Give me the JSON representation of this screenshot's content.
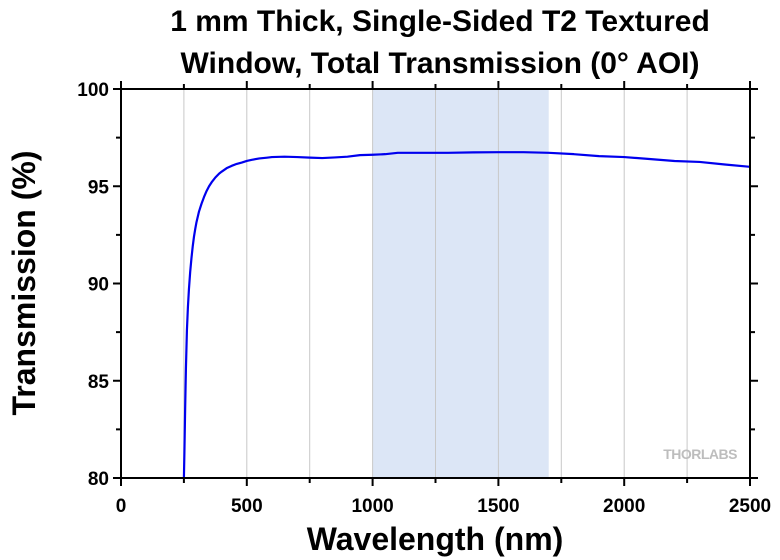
{
  "chart_data": {
    "type": "line",
    "title": [
      "1 mm Thick, Single-Sided T2 Textured",
      "Window, Total Transmission (0° AOI)"
    ],
    "xlabel": "Wavelength (nm)",
    "ylabel": "Transmission (%)",
    "xlim": [
      0,
      2500
    ],
    "ylim": [
      80,
      100
    ],
    "x_ticks": [
      0,
      500,
      1000,
      1500,
      2000,
      2500
    ],
    "y_ticks": [
      80,
      85,
      90,
      95,
      100
    ],
    "x_minor_step": 250,
    "y_minor_step": 2.5,
    "grid": "vertical",
    "shaded_region": {
      "x": [
        1000,
        1700
      ],
      "color": "#dce6f6"
    },
    "series": [
      {
        "color": "#0000ee",
        "x": [
          250,
          252,
          255,
          258,
          262,
          266,
          270,
          275,
          280,
          285,
          290,
          295,
          300,
          310,
          320,
          330,
          340,
          350,
          360,
          375,
          390,
          400,
          420,
          440,
          460,
          480,
          500,
          520,
          550,
          580,
          600,
          650,
          700,
          750,
          800,
          850,
          900,
          950,
          1000,
          1050,
          1100,
          1200,
          1300,
          1400,
          1500,
          1600,
          1700,
          1800,
          1900,
          2000,
          2100,
          2200,
          2300,
          2400,
          2500
        ],
        "y": [
          80.0,
          81.3,
          83.6,
          85.6,
          87.6,
          88.8,
          89.7,
          90.6,
          91.3,
          91.9,
          92.4,
          92.8,
          93.15,
          93.7,
          94.1,
          94.45,
          94.75,
          95.0,
          95.2,
          95.45,
          95.65,
          95.75,
          95.93,
          96.05,
          96.15,
          96.22,
          96.3,
          96.36,
          96.43,
          96.47,
          96.5,
          96.52,
          96.5,
          96.47,
          96.45,
          96.48,
          96.52,
          96.6,
          96.62,
          96.65,
          96.72,
          96.72,
          96.72,
          96.74,
          96.75,
          96.75,
          96.72,
          96.65,
          96.55,
          96.5,
          96.4,
          96.3,
          96.25,
          96.12,
          96.0
        ]
      }
    ],
    "watermark": "THORLABS"
  }
}
